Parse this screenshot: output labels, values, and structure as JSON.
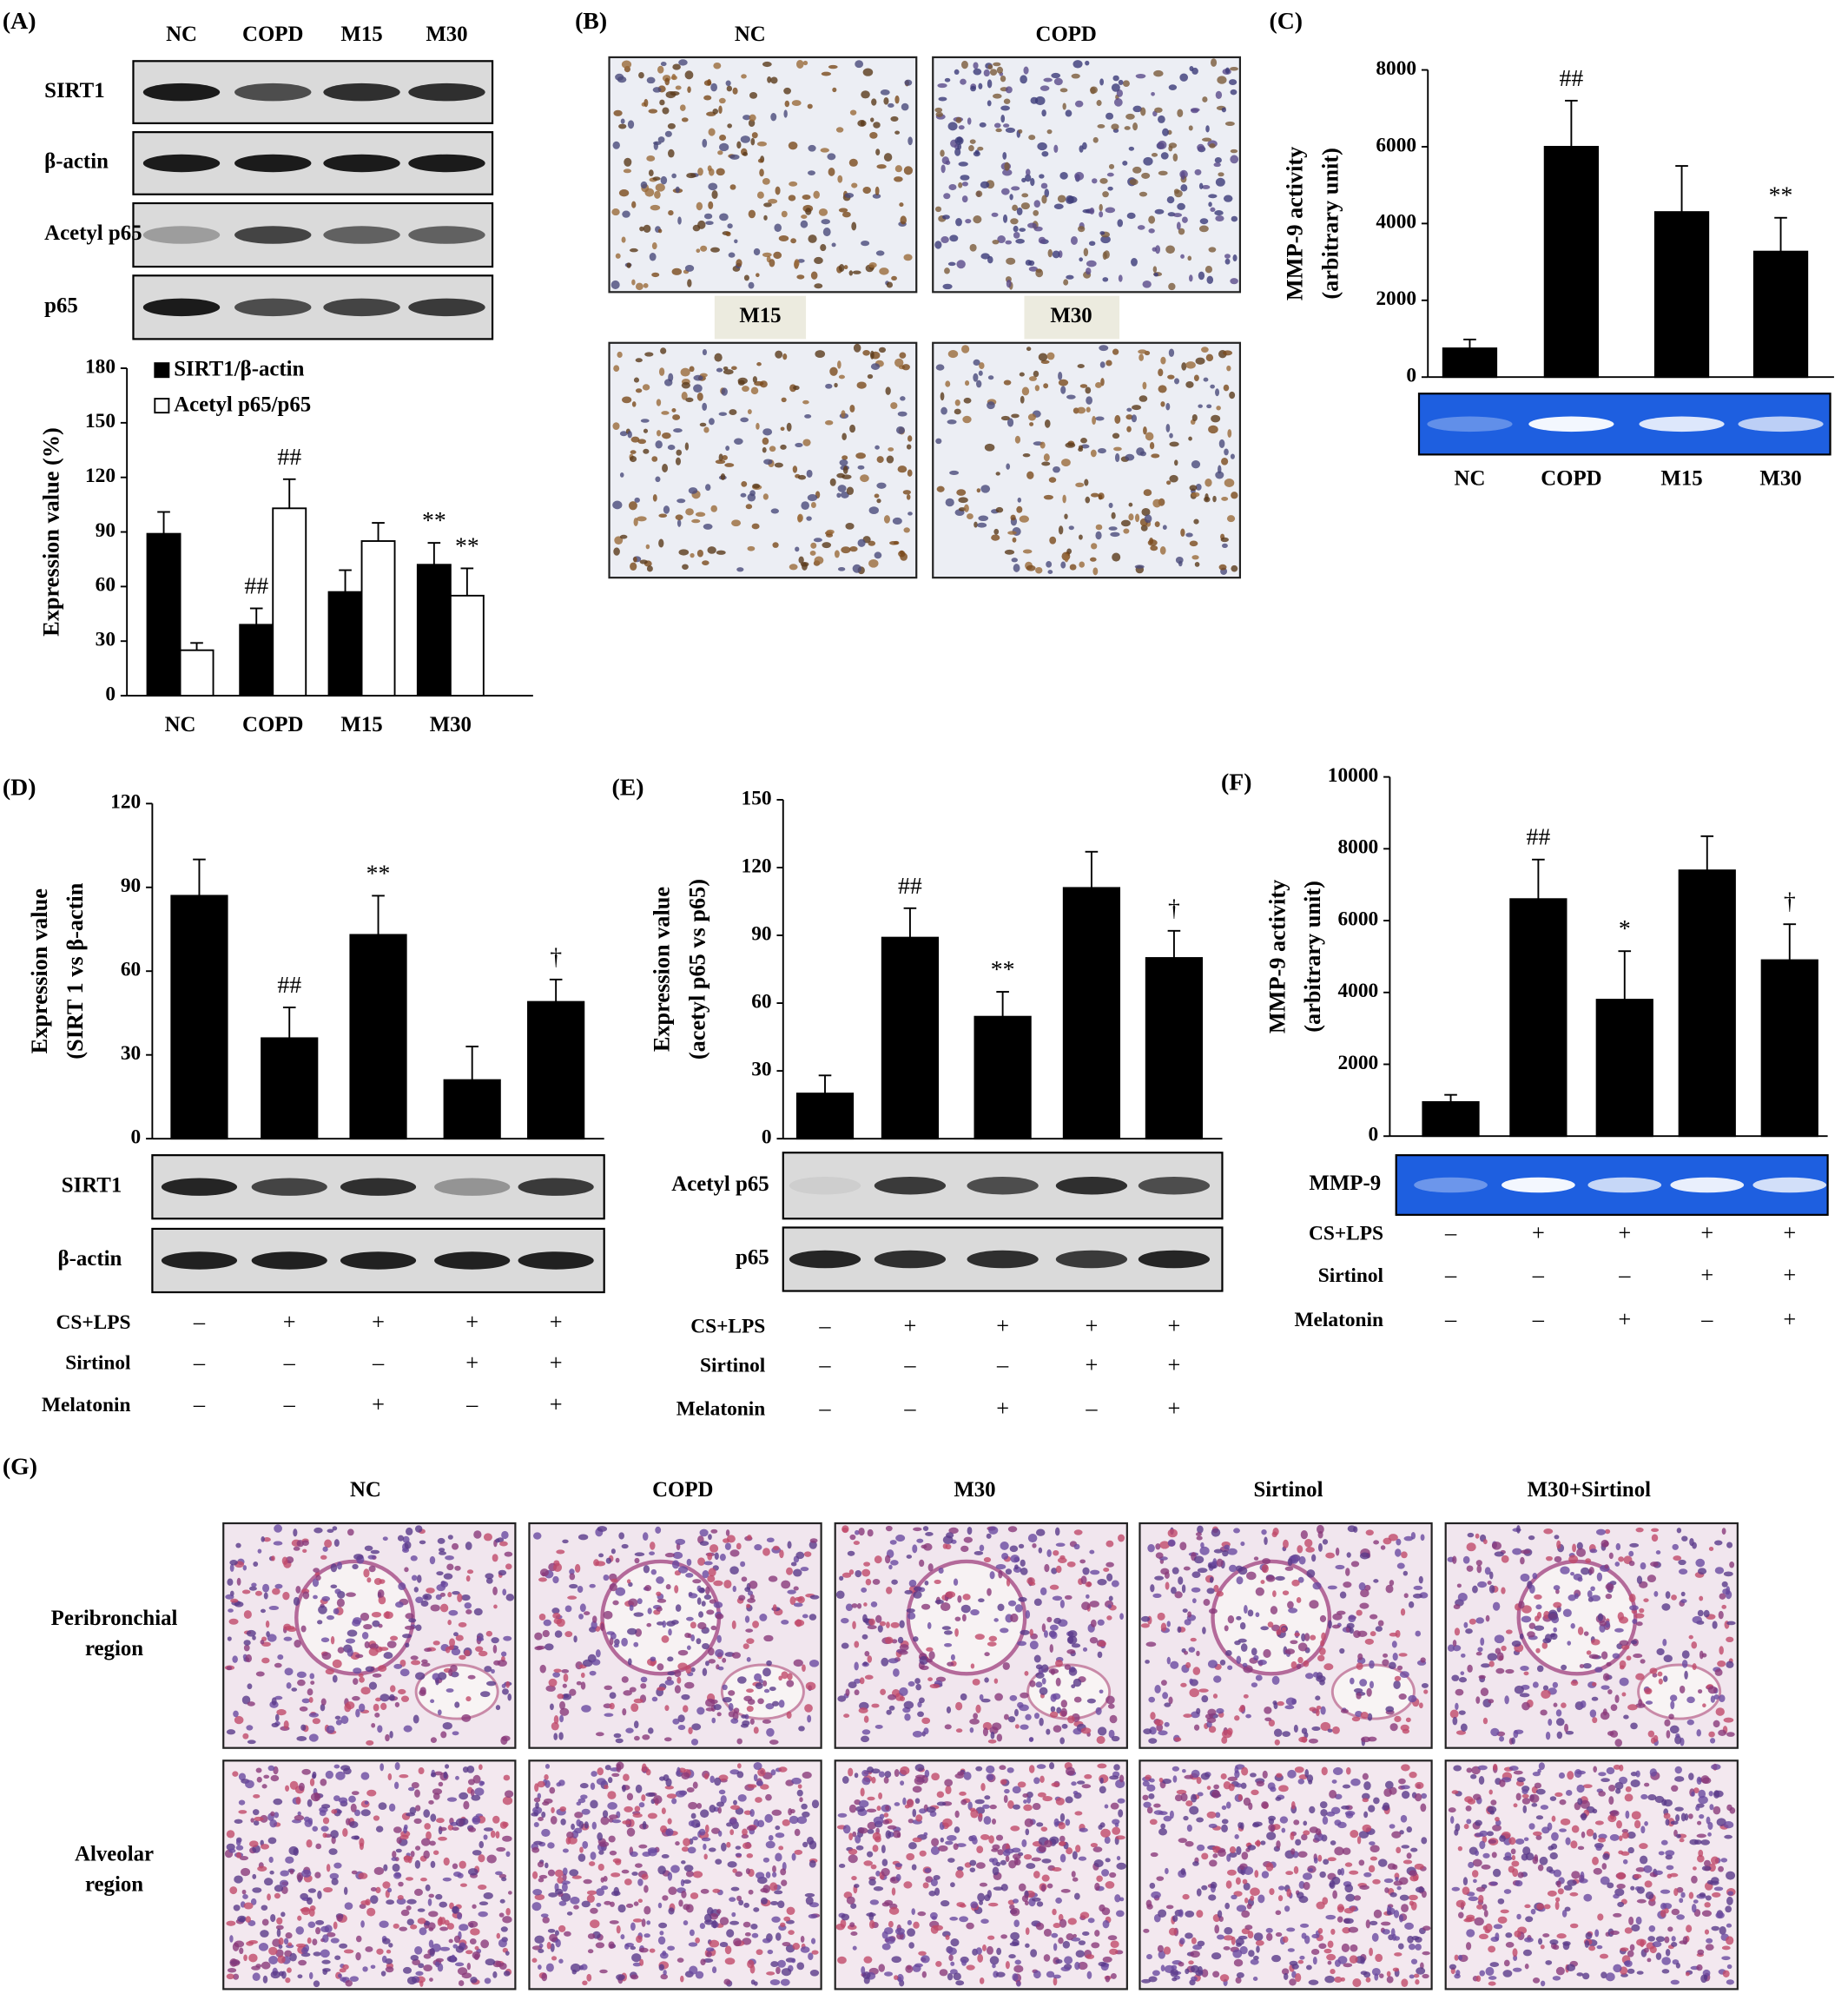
{
  "chart_data": [
    {
      "panel_label": "(A)",
      "type": "bar",
      "categories": [
        "NC",
        "COPD",
        "M15",
        "M30"
      ],
      "blot_labels": [
        "SIRT1",
        "β-actin",
        "Acetyl p65",
        "p65"
      ],
      "y_label": [
        "Expression value (%)"
      ],
      "ylim": [
        0,
        180
      ],
      "yticks": [
        0,
        30,
        60,
        90,
        120,
        150,
        180
      ],
      "legend": "top-left",
      "series": [
        {
          "name": "SIRT1/β-actin",
          "color": "#000000",
          "values": [
            89,
            39,
            57,
            72
          ],
          "errors": [
            12,
            9,
            12,
            12
          ],
          "annotations": [
            null,
            "##",
            null,
            "**"
          ]
        },
        {
          "name": "Acetyl p65/p65",
          "color": "#ffffff",
          "values": [
            25,
            103,
            85,
            55
          ],
          "errors": [
            4,
            16,
            10,
            15
          ],
          "annotations": [
            null,
            "##",
            null,
            "**"
          ]
        }
      ]
    },
    {
      "panel_label": "(C)",
      "type": "bar",
      "categories": [
        "NC",
        "COPD",
        "M15",
        "M30"
      ],
      "y_label": [
        "MMP-9 activity",
        "(arbitrary unit)"
      ],
      "ylim": [
        0,
        8000
      ],
      "yticks": [
        0,
        2000,
        4000,
        6000,
        8000
      ],
      "color": "#000000",
      "values": [
        750,
        6000,
        4300,
        3270
      ],
      "errors": [
        230,
        1200,
        1200,
        880
      ],
      "annotations": [
        null,
        "##",
        null,
        "**"
      ]
    },
    {
      "panel_label": "(D)",
      "type": "bar",
      "blot_labels": [
        "SIRT1",
        "β-actin"
      ],
      "y_label": [
        "Expression value",
        "(SIRT 1 vs β-actin"
      ],
      "ylim": [
        0,
        120
      ],
      "yticks": [
        0,
        30,
        60,
        90,
        120
      ],
      "color": "#000000",
      "values": [
        87,
        36,
        73,
        21,
        49
      ],
      "errors": [
        13,
        11,
        14,
        12,
        8
      ],
      "annotations": [
        null,
        "##",
        "**",
        null,
        "†"
      ],
      "treatments": [
        {
          "name": "CS+LPS",
          "values": [
            "–",
            "+",
            "+",
            "+",
            "+"
          ]
        },
        {
          "name": "Sirtinol",
          "values": [
            "–",
            "–",
            "–",
            "+",
            "+"
          ]
        },
        {
          "name": "Melatonin",
          "values": [
            "–",
            "–",
            "+",
            "–",
            "+"
          ]
        }
      ]
    },
    {
      "panel_label": "(E)",
      "type": "bar",
      "blot_labels": [
        "Acetyl p65",
        "p65"
      ],
      "y_label": [
        "Expression value",
        "(acetyl p65 vs p65)"
      ],
      "ylim": [
        0,
        150
      ],
      "yticks": [
        0,
        30,
        60,
        90,
        120,
        150
      ],
      "color": "#000000",
      "values": [
        20,
        89,
        54,
        111,
        80
      ],
      "errors": [
        8,
        13,
        11,
        16,
        12
      ],
      "annotations": [
        null,
        "##",
        "**",
        null,
        "†"
      ],
      "treatments": [
        {
          "name": "CS+LPS",
          "values": [
            "–",
            "+",
            "+",
            "+",
            "+"
          ]
        },
        {
          "name": "Sirtinol",
          "values": [
            "–",
            "–",
            "–",
            "+",
            "+"
          ]
        },
        {
          "name": "Melatonin",
          "values": [
            "–",
            "–",
            "+",
            "–",
            "+"
          ]
        }
      ]
    },
    {
      "panel_label": "(F)",
      "type": "bar",
      "blot_labels": [
        "MMP-9"
      ],
      "y_label": [
        "MMP-9 activity",
        "(arbitrary unit)"
      ],
      "ylim": [
        0,
        10000
      ],
      "yticks": [
        0,
        2000,
        4000,
        6000,
        8000,
        10000
      ],
      "color": "#000000",
      "values": [
        950,
        6600,
        3800,
        7400,
        4900
      ],
      "errors": [
        200,
        1100,
        1350,
        950,
        1000
      ],
      "annotations": [
        null,
        "##",
        "*",
        null,
        "†"
      ],
      "treatments": [
        {
          "name": "CS+LPS",
          "values": [
            "–",
            "+",
            "+",
            "+",
            "+"
          ]
        },
        {
          "name": "Sirtinol",
          "values": [
            "–",
            "–",
            "–",
            "+",
            "+"
          ]
        },
        {
          "name": "Melatonin",
          "values": [
            "–",
            "–",
            "+",
            "–",
            "+"
          ]
        }
      ]
    }
  ],
  "micrographs": {
    "panel_label": "(B)",
    "labels": [
      "NC",
      "COPD",
      "M15",
      "M30"
    ]
  },
  "histology": {
    "panel_label": "(G)",
    "columns": [
      "NC",
      "COPD",
      "M30",
      "Sirtinol",
      "M30+Sirtinol"
    ],
    "rows": [
      [
        "Peribronchial",
        "region"
      ],
      [
        "Alveolar",
        "region"
      ]
    ]
  }
}
